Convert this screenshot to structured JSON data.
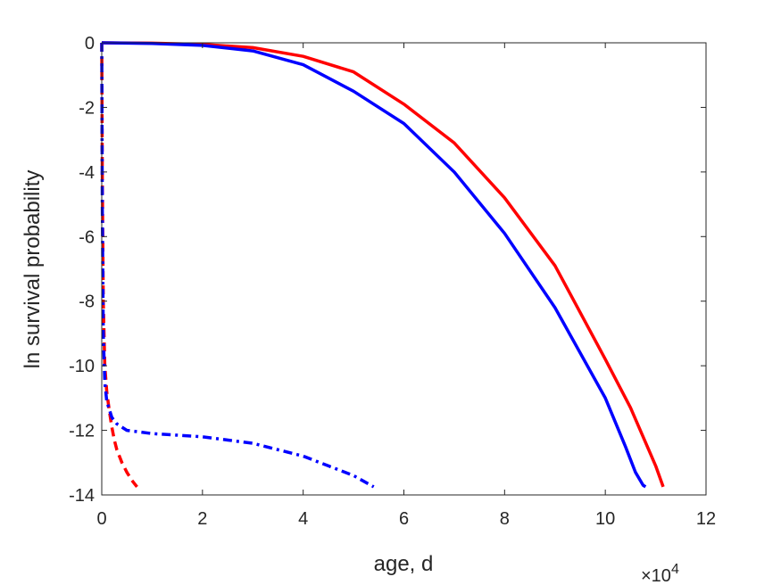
{
  "chart_data": {
    "type": "line",
    "title": "",
    "xlabel": "age, d",
    "ylabel": "ln survival probability",
    "x_exponent_label": "×10",
    "x_exponent_power": "4",
    "xlim": [
      0,
      120000
    ],
    "ylim": [
      -14,
      0
    ],
    "x_ticks": [
      0,
      20000,
      40000,
      60000,
      80000,
      100000,
      120000
    ],
    "x_tick_labels": [
      "0",
      "2",
      "4",
      "6",
      "8",
      "10",
      "12"
    ],
    "y_ticks": [
      0,
      -2,
      -4,
      -6,
      -8,
      -10,
      -12,
      -14
    ],
    "y_tick_labels": [
      "0",
      "-2",
      "-4",
      "-6",
      "-8",
      "-10",
      "-12",
      "-14"
    ],
    "grid": false,
    "series": [
      {
        "color": "#ff0000",
        "style": "solid",
        "x": [
          0,
          10000,
          20000,
          30000,
          40000,
          50000,
          60000,
          70000,
          80000,
          90000,
          100000,
          105000,
          110000,
          111500
        ],
        "y": [
          0,
          -0.01,
          -0.05,
          -0.15,
          -0.42,
          -0.9,
          -1.9,
          -3.1,
          -4.8,
          -6.9,
          -9.8,
          -11.3,
          -13.1,
          -13.75
        ]
      },
      {
        "color": "#0000ff",
        "style": "solid",
        "x": [
          0,
          10000,
          20000,
          30000,
          40000,
          50000,
          60000,
          70000,
          80000,
          90000,
          100000,
          104000,
          106000,
          107500,
          108000
        ],
        "y": [
          0,
          -0.02,
          -0.08,
          -0.25,
          -0.68,
          -1.5,
          -2.5,
          -4.0,
          -5.9,
          -8.2,
          -11.0,
          -12.5,
          -13.3,
          -13.7,
          -13.75
        ]
      },
      {
        "color": "#ff0000",
        "style": "dashed",
        "x": [
          0,
          100,
          300,
          600,
          1000,
          1500,
          2000,
          2500,
          3000,
          4000,
          5000,
          6000,
          7000
        ],
        "y": [
          0,
          -4,
          -8,
          -10,
          -10.8,
          -11.4,
          -11.9,
          -12.3,
          -12.6,
          -13.0,
          -13.3,
          -13.55,
          -13.75
        ]
      },
      {
        "color": "#0000ff",
        "style": "dashdot",
        "x": [
          0,
          100,
          300,
          600,
          1000,
          2000,
          3000,
          5000,
          10000,
          20000,
          30000,
          40000,
          45000,
          50000,
          54000
        ],
        "y": [
          0,
          -5,
          -9,
          -10.5,
          -11.1,
          -11.6,
          -11.8,
          -12.0,
          -12.1,
          -12.2,
          -12.4,
          -12.8,
          -13.1,
          -13.4,
          -13.75
        ]
      }
    ]
  }
}
